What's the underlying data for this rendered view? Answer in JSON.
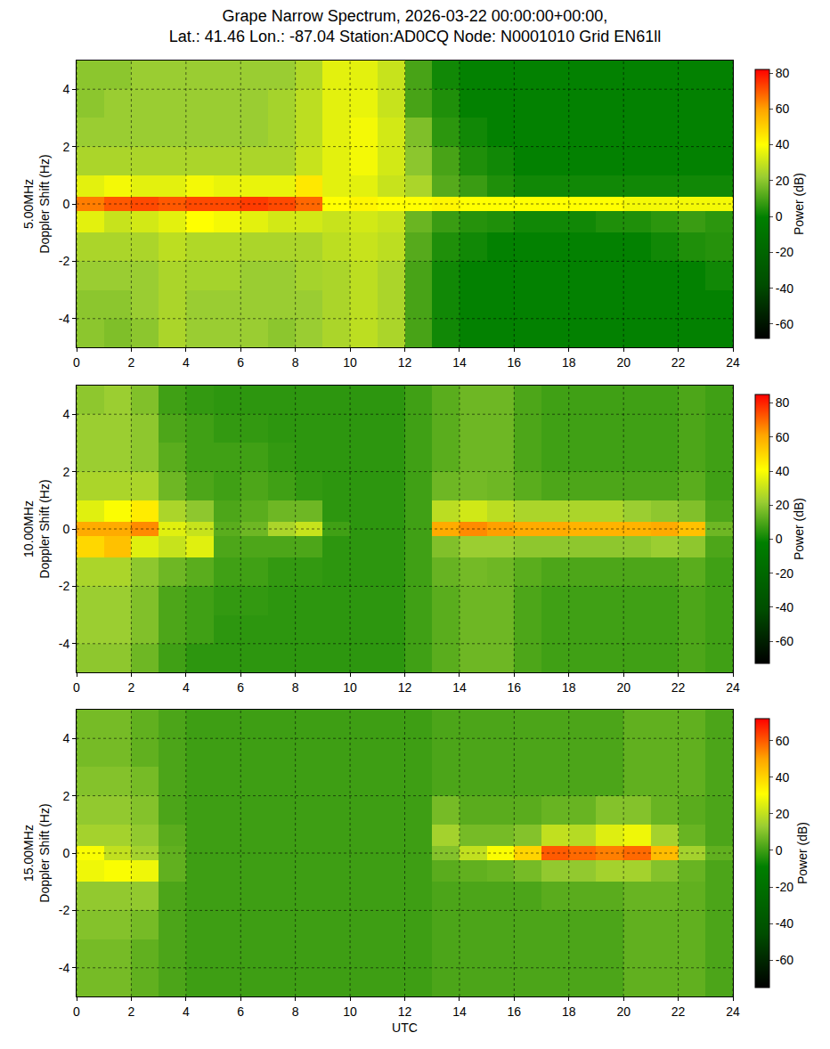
{
  "title": [
    "Grape Narrow Spectrum, 2026-03-22 00:00:00+00:00,",
    "Lat.: 41.46 Lon.: -87.04 Station:AD0CQ Node: N0001010 Grid EN61ll"
  ],
  "chart_data": [
    {
      "type": "heatmap",
      "ylabel": [
        "5.00MHz",
        "Doppler Shift (Hz)"
      ],
      "colorbar_label": "Power (dB)",
      "grid": true,
      "x": [
        0.5,
        1.5,
        2.5,
        3.5,
        4.5,
        5.5,
        6.5,
        7.5,
        8.5,
        9.5,
        10.5,
        11.5,
        12.5,
        13.5,
        14.5,
        15.5,
        16.5,
        17.5,
        18.5,
        19.5,
        20.5,
        21.5,
        22.5,
        23.5
      ],
      "y": [
        -4.5,
        -3.5,
        -2.5,
        -1.5,
        -0.5,
        0,
        0.5,
        1.5,
        2.5,
        3.5,
        4.5
      ],
      "cells": [
        [
          20,
          18,
          20,
          25,
          22,
          22,
          22,
          20,
          22,
          25,
          28,
          25,
          10,
          2,
          0,
          0,
          0,
          0,
          0,
          0,
          0,
          0,
          0,
          0
        ],
        [
          20,
          20,
          22,
          25,
          22,
          22,
          22,
          22,
          22,
          25,
          28,
          25,
          10,
          2,
          0,
          0,
          0,
          0,
          0,
          0,
          0,
          0,
          0,
          0
        ],
        [
          22,
          22,
          22,
          25,
          24,
          24,
          22,
          22,
          24,
          25,
          28,
          25,
          10,
          2,
          0,
          0,
          0,
          0,
          0,
          0,
          0,
          0,
          0,
          2
        ],
        [
          25,
          25,
          25,
          28,
          26,
          26,
          25,
          25,
          25,
          28,
          30,
          28,
          12,
          4,
          2,
          0,
          0,
          0,
          0,
          0,
          0,
          2,
          4,
          5
        ],
        [
          35,
          30,
          32,
          35,
          40,
          38,
          35,
          32,
          32,
          30,
          32,
          30,
          15,
          8,
          5,
          4,
          2,
          2,
          2,
          4,
          4,
          6,
          8,
          6
        ],
        [
          65,
          70,
          72,
          70,
          72,
          72,
          74,
          72,
          68,
          40,
          42,
          40,
          40,
          42,
          40,
          40,
          40,
          40,
          40,
          40,
          38,
          38,
          38,
          38
        ],
        [
          35,
          38,
          35,
          35,
          38,
          36,
          36,
          36,
          45,
          35,
          35,
          30,
          25,
          12,
          8,
          4,
          2,
          2,
          2,
          2,
          2,
          2,
          2,
          2
        ],
        [
          25,
          25,
          25,
          25,
          25,
          25,
          25,
          25,
          30,
          35,
          38,
          32,
          20,
          10,
          4,
          2,
          0,
          0,
          0,
          0,
          0,
          0,
          0,
          0
        ],
        [
          22,
          22,
          22,
          22,
          22,
          22,
          22,
          24,
          28,
          35,
          38,
          32,
          18,
          6,
          2,
          0,
          0,
          0,
          0,
          0,
          0,
          0,
          0,
          0
        ],
        [
          20,
          22,
          22,
          22,
          22,
          22,
          22,
          24,
          28,
          35,
          36,
          30,
          10,
          4,
          0,
          0,
          0,
          0,
          0,
          0,
          0,
          0,
          0,
          0
        ],
        [
          20,
          20,
          22,
          22,
          22,
          22,
          22,
          22,
          26,
          35,
          35,
          30,
          10,
          2,
          0,
          0,
          0,
          0,
          0,
          0,
          0,
          0,
          0,
          0
        ]
      ],
      "xlim": [
        0,
        24
      ],
      "xticks": [
        0,
        2,
        4,
        6,
        8,
        10,
        12,
        14,
        16,
        18,
        20,
        22,
        24
      ],
      "ylim": [
        -5,
        5
      ],
      "yticks": [
        -4,
        -2,
        0,
        2,
        4
      ],
      "zlim": [
        -68,
        82
      ],
      "zticks": [
        -60,
        -40,
        -20,
        0,
        20,
        40,
        60,
        80
      ]
    },
    {
      "type": "heatmap",
      "ylabel": [
        "10.00MHz",
        "Doppler Shift (Hz)"
      ],
      "colorbar_label": "Power (dB)",
      "grid": true,
      "x": [
        0.5,
        1.5,
        2.5,
        3.5,
        4.5,
        5.5,
        6.5,
        7.5,
        8.5,
        9.5,
        10.5,
        11.5,
        12.5,
        13.5,
        14.5,
        15.5,
        16.5,
        17.5,
        18.5,
        19.5,
        20.5,
        21.5,
        22.5,
        23.5
      ],
      "y": [
        -4.5,
        -3.5,
        -2.5,
        -1.5,
        -0.5,
        0,
        0.5,
        1.5,
        2.5,
        3.5,
        4.5
      ],
      "cells": [
        [
          20,
          20,
          15,
          8,
          5,
          5,
          5,
          5,
          5,
          5,
          5,
          5,
          8,
          12,
          15,
          15,
          10,
          8,
          8,
          8,
          8,
          8,
          10,
          8
        ],
        [
          22,
          22,
          18,
          10,
          8,
          5,
          5,
          5,
          5,
          5,
          5,
          5,
          8,
          12,
          15,
          15,
          10,
          8,
          8,
          8,
          8,
          8,
          10,
          8
        ],
        [
          22,
          22,
          18,
          10,
          8,
          6,
          6,
          5,
          5,
          5,
          5,
          5,
          8,
          12,
          15,
          15,
          10,
          8,
          8,
          8,
          8,
          8,
          10,
          8
        ],
        [
          25,
          25,
          20,
          15,
          12,
          8,
          8,
          6,
          6,
          5,
          5,
          5,
          8,
          14,
          16,
          15,
          12,
          10,
          10,
          10,
          10,
          10,
          12,
          8
        ],
        [
          50,
          55,
          35,
          30,
          35,
          10,
          10,
          10,
          10,
          5,
          5,
          5,
          8,
          18,
          22,
          22,
          20,
          20,
          20,
          20,
          20,
          22,
          20,
          10
        ],
        [
          60,
          60,
          65,
          35,
          30,
          12,
          15,
          25,
          30,
          8,
          5,
          5,
          8,
          60,
          65,
          62,
          60,
          60,
          58,
          58,
          58,
          60,
          55,
          15
        ],
        [
          35,
          40,
          45,
          25,
          20,
          10,
          12,
          15,
          15,
          5,
          5,
          5,
          8,
          28,
          32,
          28,
          25,
          25,
          25,
          25,
          22,
          20,
          18,
          10
        ],
        [
          25,
          25,
          25,
          15,
          10,
          8,
          10,
          8,
          6,
          5,
          5,
          5,
          8,
          15,
          16,
          15,
          12,
          10,
          10,
          10,
          10,
          10,
          12,
          8
        ],
        [
          22,
          22,
          20,
          12,
          8,
          8,
          8,
          6,
          5,
          5,
          5,
          5,
          8,
          12,
          15,
          15,
          10,
          8,
          8,
          8,
          8,
          8,
          10,
          8
        ],
        [
          22,
          22,
          20,
          10,
          8,
          6,
          6,
          5,
          5,
          5,
          5,
          5,
          8,
          12,
          15,
          15,
          10,
          8,
          8,
          8,
          8,
          8,
          10,
          8
        ],
        [
          20,
          22,
          18,
          8,
          6,
          5,
          5,
          5,
          5,
          5,
          5,
          5,
          8,
          12,
          15,
          15,
          10,
          8,
          8,
          8,
          8,
          8,
          10,
          8
        ]
      ],
      "xlim": [
        0,
        24
      ],
      "xticks": [
        0,
        2,
        4,
        6,
        8,
        10,
        12,
        14,
        16,
        18,
        20,
        22,
        24
      ],
      "ylim": [
        -5,
        5
      ],
      "yticks": [
        -4,
        -2,
        0,
        2,
        4
      ],
      "zlim": [
        -73,
        85
      ],
      "zticks": [
        -60,
        -40,
        -20,
        0,
        20,
        40,
        60,
        80
      ]
    },
    {
      "type": "heatmap",
      "ylabel": [
        "15.00MHz",
        "Doppler Shift (Hz)"
      ],
      "xlabel": "UTC",
      "colorbar_label": "Power (dB)",
      "grid": true,
      "x": [
        0.5,
        1.5,
        2.5,
        3.5,
        4.5,
        5.5,
        6.5,
        7.5,
        8.5,
        9.5,
        10.5,
        11.5,
        12.5,
        13.5,
        14.5,
        15.5,
        16.5,
        17.5,
        18.5,
        19.5,
        20.5,
        21.5,
        22.5,
        23.5
      ],
      "y": [
        -4.5,
        -3.5,
        -2.5,
        -1.5,
        -0.5,
        0,
        0.5,
        1.5,
        2.5,
        3.5,
        4.5
      ],
      "cells": [
        [
          8,
          8,
          5,
          2,
          0,
          0,
          0,
          0,
          0,
          0,
          0,
          0,
          0,
          2,
          2,
          2,
          2,
          2,
          2,
          2,
          5,
          5,
          5,
          2
        ],
        [
          8,
          8,
          5,
          2,
          0,
          0,
          0,
          0,
          0,
          0,
          0,
          0,
          0,
          2,
          2,
          2,
          2,
          2,
          2,
          2,
          5,
          5,
          5,
          2
        ],
        [
          10,
          10,
          8,
          2,
          0,
          0,
          0,
          0,
          0,
          0,
          0,
          0,
          0,
          2,
          2,
          2,
          2,
          2,
          2,
          2,
          5,
          5,
          5,
          2
        ],
        [
          12,
          12,
          12,
          2,
          0,
          0,
          0,
          0,
          0,
          0,
          0,
          0,
          0,
          2,
          2,
          2,
          2,
          4,
          4,
          4,
          6,
          6,
          5,
          2
        ],
        [
          28,
          30,
          28,
          5,
          0,
          0,
          0,
          0,
          0,
          0,
          0,
          0,
          0,
          4,
          5,
          6,
          8,
          12,
          12,
          15,
          15,
          10,
          6,
          2
        ],
        [
          30,
          20,
          15,
          5,
          0,
          0,
          0,
          0,
          0,
          0,
          0,
          0,
          0,
          10,
          20,
          30,
          40,
          60,
          58,
          55,
          58,
          45,
          15,
          5
        ],
        [
          15,
          15,
          12,
          4,
          0,
          0,
          0,
          0,
          0,
          0,
          0,
          0,
          0,
          15,
          8,
          8,
          10,
          20,
          18,
          25,
          28,
          15,
          6,
          2
        ],
        [
          12,
          12,
          10,
          2,
          0,
          0,
          0,
          0,
          0,
          0,
          0,
          0,
          0,
          8,
          4,
          4,
          4,
          6,
          6,
          10,
          10,
          6,
          4,
          2
        ],
        [
          10,
          10,
          8,
          2,
          0,
          0,
          0,
          0,
          0,
          0,
          0,
          0,
          0,
          2,
          2,
          2,
          2,
          2,
          2,
          2,
          5,
          5,
          5,
          2
        ],
        [
          8,
          8,
          5,
          2,
          0,
          0,
          0,
          0,
          0,
          0,
          0,
          0,
          0,
          2,
          2,
          2,
          2,
          2,
          2,
          2,
          5,
          5,
          5,
          2
        ],
        [
          8,
          8,
          5,
          2,
          0,
          0,
          0,
          0,
          0,
          0,
          0,
          0,
          0,
          2,
          2,
          2,
          2,
          2,
          2,
          2,
          5,
          5,
          5,
          2
        ]
      ],
      "xlim": [
        0,
        24
      ],
      "xticks": [
        0,
        2,
        4,
        6,
        8,
        10,
        12,
        14,
        16,
        18,
        20,
        22,
        24
      ],
      "ylim": [
        -5,
        5
      ],
      "yticks": [
        -4,
        -2,
        0,
        2,
        4
      ],
      "zlim": [
        -75,
        72
      ],
      "zticks": [
        -60,
        -40,
        -20,
        0,
        20,
        40,
        60
      ]
    }
  ]
}
